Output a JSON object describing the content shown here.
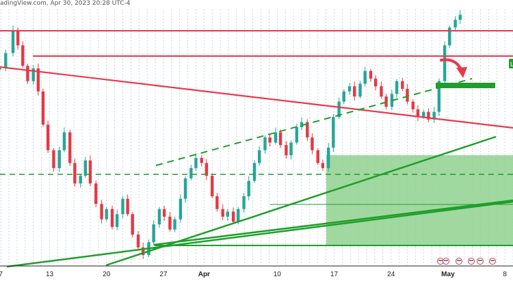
{
  "header": {
    "text": "adingView.com, Apr 30, 2023 20:28 UTC-4"
  },
  "colors": {
    "up": "#26a69a",
    "down": "#e53945",
    "resistance": "#e8394a",
    "support": "#1e9e2a",
    "zone": "#8fd18f",
    "arrow": "#e8394a",
    "grid": "#8fb4d8",
    "axis": "#222222",
    "badge": "#1e9e2a"
  },
  "chart_data": {
    "type": "candlestick",
    "title": "",
    "xlabel": "",
    "ylabel": "",
    "x_ticks": [
      {
        "label": "7",
        "day": 7
      },
      {
        "label": "13",
        "day": 13
      },
      {
        "label": "20",
        "day": 20
      },
      {
        "label": "27",
        "day": 27
      },
      {
        "label": "Apr",
        "day": 32
      },
      {
        "label": "10",
        "day": 41
      },
      {
        "label": "17",
        "day": 48
      },
      {
        "label": "24",
        "day": 55
      },
      {
        "label": "May",
        "day": 62
      },
      {
        "label": "8",
        "day": 69
      }
    ],
    "x_range": [
      6.9,
      70
    ],
    "y_range": [
      0,
      100
    ],
    "grid": true,
    "legend": "none",
    "badge_label": "L",
    "note": "",
    "candles_path_y": [
      [
        6.9,
        77
      ],
      [
        7.6,
        83
      ],
      [
        8.5,
        92
      ],
      [
        9.1,
        86
      ],
      [
        9.7,
        78
      ],
      [
        10.3,
        72
      ],
      [
        11.0,
        77
      ],
      [
        11.6,
        68
      ],
      [
        12.2,
        55
      ],
      [
        12.8,
        45
      ],
      [
        13.5,
        38
      ],
      [
        14.2,
        45
      ],
      [
        14.8,
        52
      ],
      [
        15.5,
        40
      ],
      [
        16.1,
        32
      ],
      [
        16.8,
        35
      ],
      [
        17.4,
        41
      ],
      [
        18.0,
        32
      ],
      [
        18.7,
        24
      ],
      [
        19.4,
        18
      ],
      [
        20.0,
        22
      ],
      [
        20.7,
        15
      ],
      [
        21.3,
        20
      ],
      [
        22.0,
        26
      ],
      [
        22.6,
        20
      ],
      [
        23.2,
        12
      ],
      [
        23.9,
        7
      ],
      [
        24.5,
        4
      ],
      [
        25.2,
        9
      ],
      [
        25.8,
        16
      ],
      [
        26.5,
        22
      ],
      [
        27.1,
        19
      ],
      [
        27.8,
        14
      ],
      [
        28.4,
        18
      ],
      [
        29.1,
        26
      ],
      [
        29.7,
        34
      ],
      [
        30.4,
        38
      ],
      [
        31.0,
        42
      ],
      [
        31.7,
        40
      ],
      [
        32.3,
        35
      ],
      [
        33.0,
        27
      ],
      [
        33.6,
        22
      ],
      [
        34.3,
        19
      ],
      [
        34.9,
        21
      ],
      [
        35.6,
        17
      ],
      [
        36.2,
        22
      ],
      [
        36.9,
        27
      ],
      [
        37.5,
        33
      ],
      [
        38.2,
        40
      ],
      [
        38.8,
        45
      ],
      [
        39.5,
        50
      ],
      [
        40.1,
        48
      ],
      [
        40.8,
        52
      ],
      [
        41.4,
        47
      ],
      [
        42.1,
        43
      ],
      [
        42.7,
        48
      ],
      [
        43.4,
        54
      ],
      [
        44.0,
        56
      ],
      [
        44.7,
        50
      ],
      [
        45.3,
        45
      ],
      [
        46.0,
        40
      ],
      [
        46.6,
        38
      ],
      [
        47.3,
        46
      ],
      [
        47.9,
        58
      ],
      [
        48.6,
        64
      ],
      [
        49.2,
        68
      ],
      [
        49.9,
        70
      ],
      [
        50.5,
        66
      ],
      [
        51.2,
        71
      ],
      [
        51.8,
        76
      ],
      [
        52.5,
        73
      ],
      [
        53.1,
        70
      ],
      [
        53.8,
        66
      ],
      [
        54.4,
        62
      ],
      [
        55.1,
        67
      ],
      [
        55.7,
        72
      ],
      [
        56.4,
        69
      ],
      [
        57.0,
        64
      ],
      [
        57.7,
        61
      ],
      [
        58.3,
        58
      ],
      [
        59.0,
        60
      ],
      [
        59.6,
        57
      ],
      [
        60.3,
        60
      ],
      [
        60.9,
        72
      ],
      [
        61.6,
        86
      ],
      [
        62.2,
        93
      ],
      [
        62.9,
        96
      ],
      [
        63.5,
        98
      ]
    ]
  }
}
